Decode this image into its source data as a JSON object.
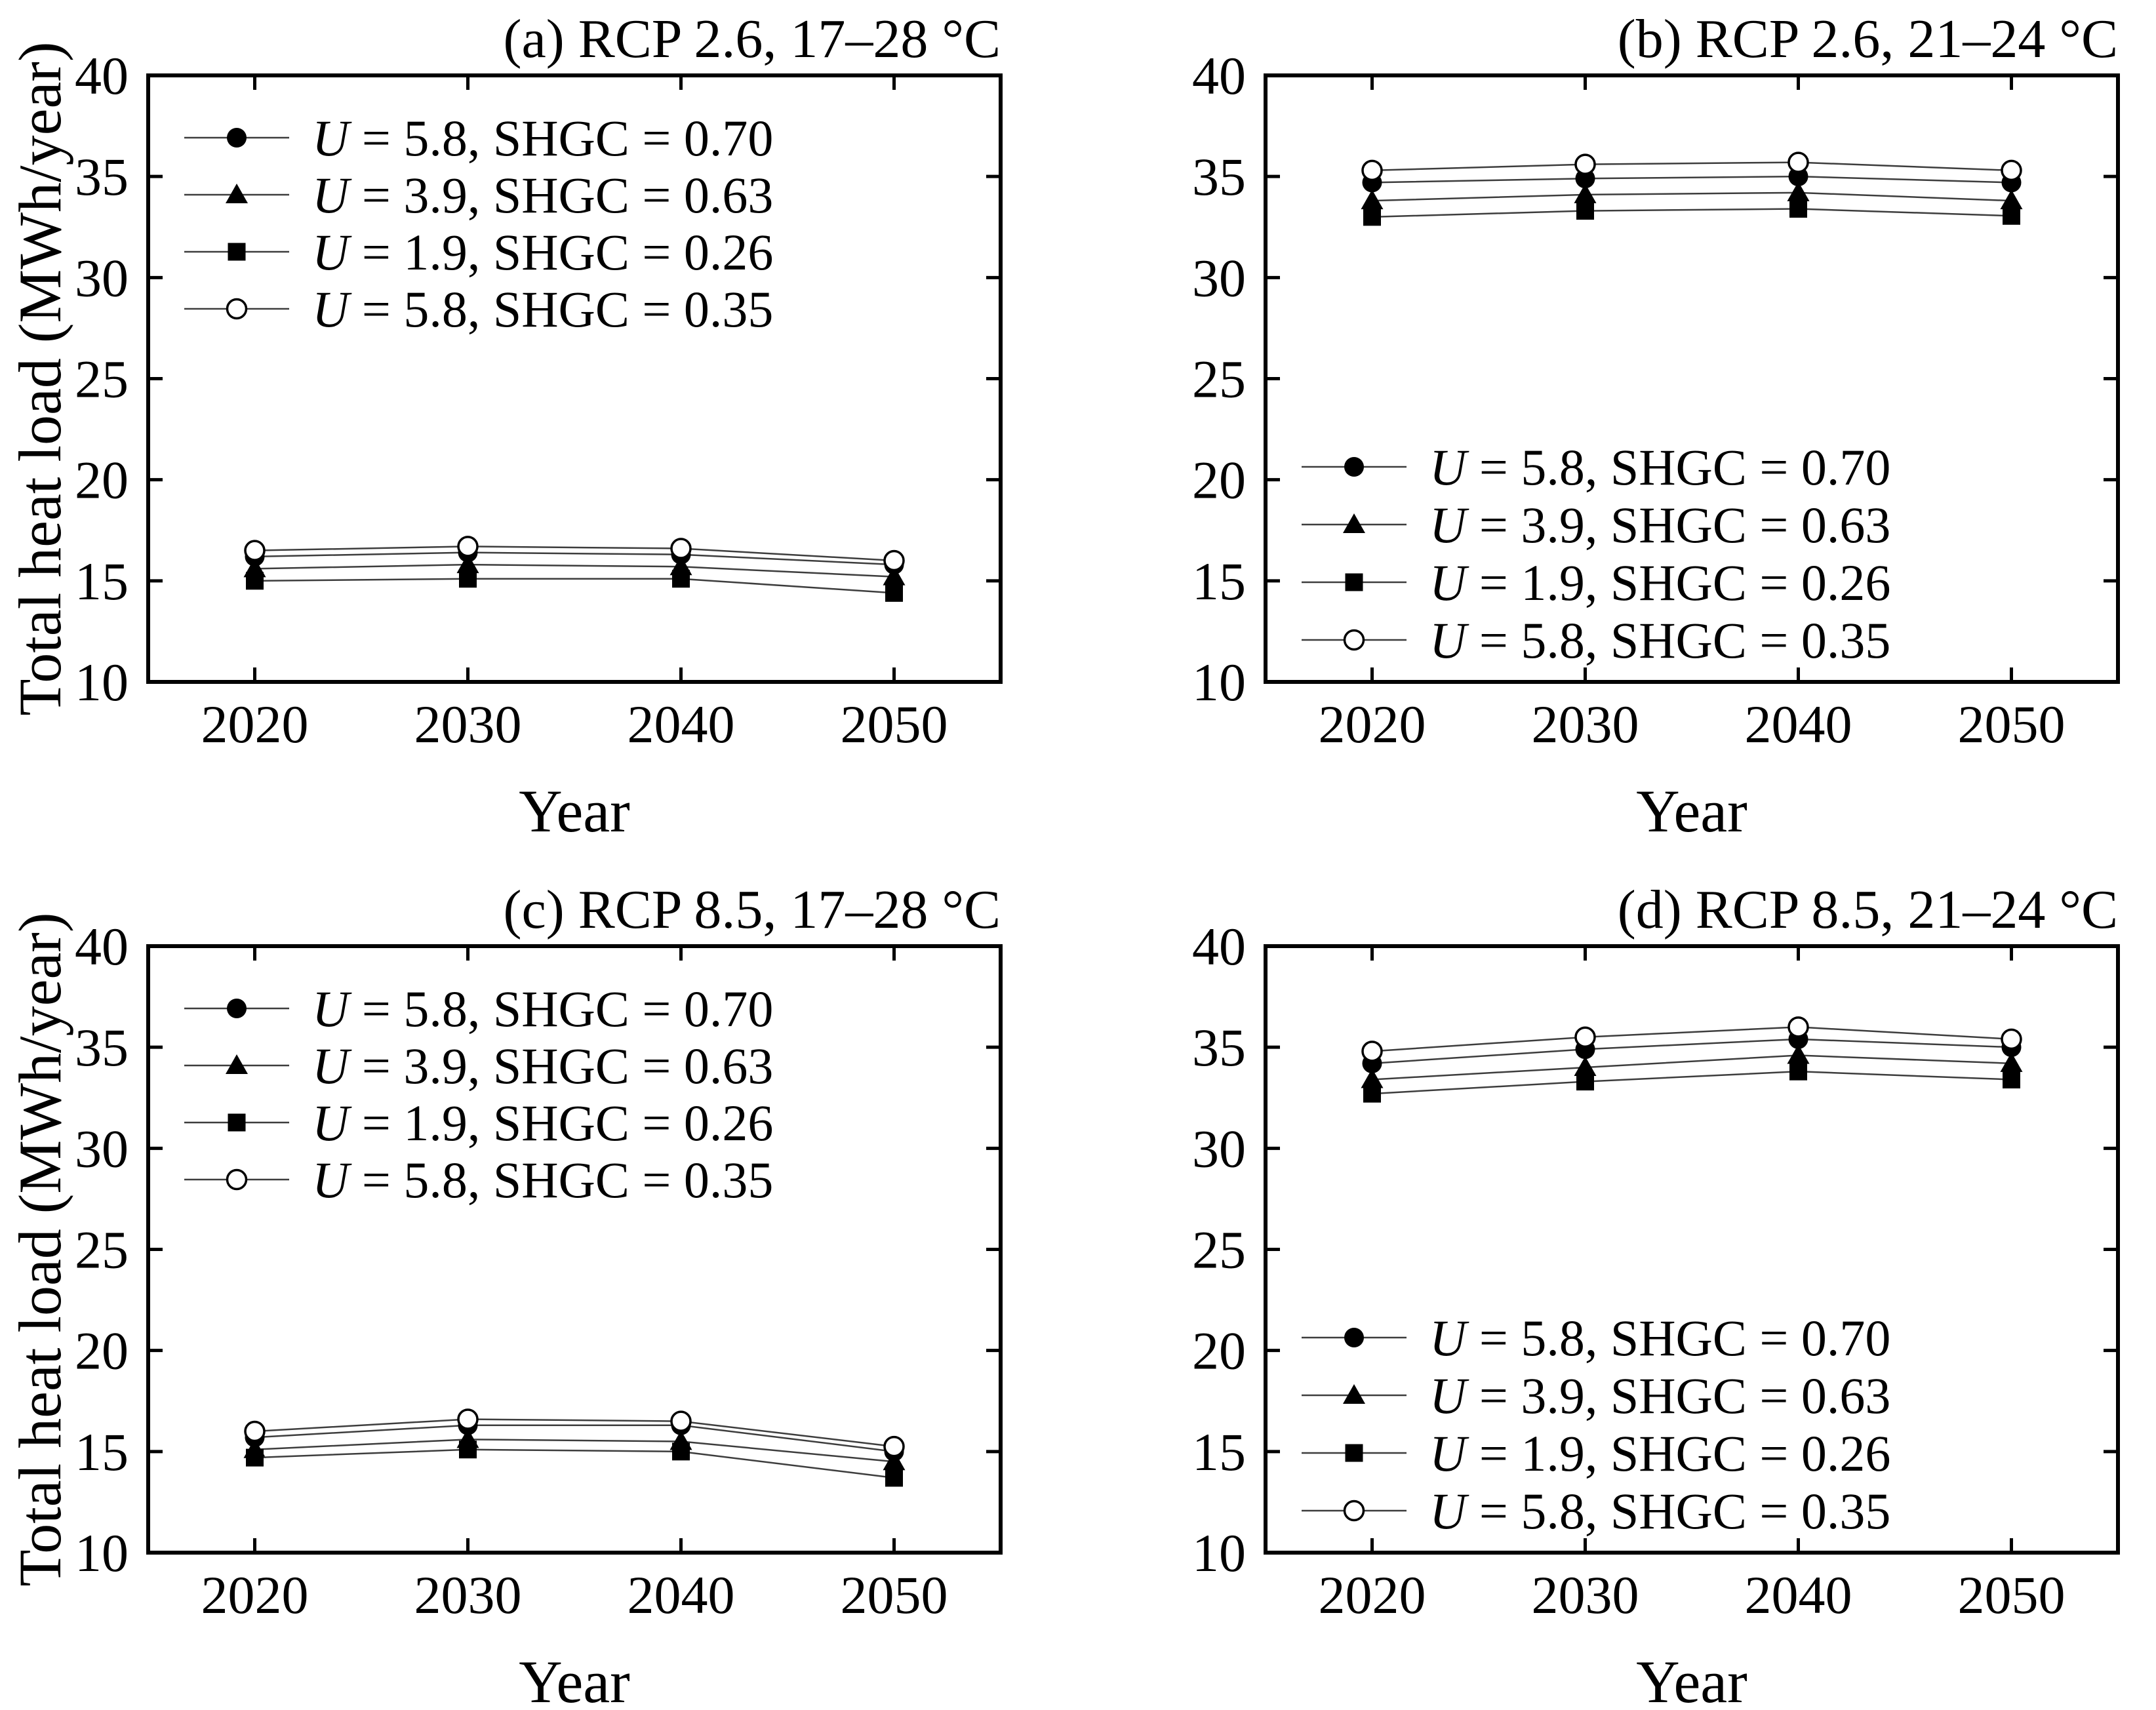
{
  "figure": {
    "background": "#ffffff",
    "ink_color": "#000000",
    "series_line_color": "#3d3d3d"
  },
  "axes": {
    "x": {
      "label": "Year",
      "range": [
        2015,
        2055
      ],
      "ticks": [
        2020,
        2030,
        2040,
        2050
      ],
      "tick_labels": [
        "2020",
        "2030",
        "2040",
        "2050"
      ]
    },
    "y": {
      "label": "Total heat load (MWh/year)",
      "range": [
        10,
        40
      ],
      "ticks": [
        10,
        15,
        20,
        25,
        30,
        35,
        40
      ],
      "tick_labels": [
        "10",
        "15",
        "20",
        "25",
        "30",
        "35",
        "40"
      ]
    }
  },
  "legend": {
    "entries": [
      {
        "marker": "filled-circle",
        "label_u": "U",
        "label_rest": " = 5.8, SHGC = 0.70",
        "full_label": "U = 5.8, SHGC = 0.70"
      },
      {
        "marker": "filled-triangle",
        "label_u": "U",
        "label_rest": " = 3.9, SHGC = 0.63",
        "full_label": "U = 3.9, SHGC = 0.63"
      },
      {
        "marker": "filled-square",
        "label_u": "U",
        "label_rest": " = 1.9, SHGC = 0.26",
        "full_label": "U = 1.9, SHGC = 0.26"
      },
      {
        "marker": "open-circle",
        "label_u": "U",
        "label_rest": " = 5.8, SHGC = 0.35",
        "full_label": "U = 5.8, SHGC = 0.35"
      }
    ]
  },
  "chart_data": [
    {
      "id": "a",
      "type": "line",
      "title": "(a) RCP 2.6, 17–28 °C",
      "xlabel": "Year",
      "ylabel": "Total heat load (MWh/year)",
      "x": [
        2020,
        2030,
        2040,
        2050
      ],
      "xlim": [
        2015,
        2055
      ],
      "ylim": [
        10,
        40
      ],
      "legend_position": "upper-left",
      "series": [
        {
          "name": "U = 5.8, SHGC = 0.70",
          "marker": "filled-circle",
          "values": [
            16.2,
            16.4,
            16.3,
            15.8
          ]
        },
        {
          "name": "U = 3.9, SHGC = 0.63",
          "marker": "filled-triangle",
          "values": [
            15.6,
            15.8,
            15.7,
            15.2
          ]
        },
        {
          "name": "U = 1.9, SHGC = 0.26",
          "marker": "filled-square",
          "values": [
            15.0,
            15.1,
            15.1,
            14.4
          ]
        },
        {
          "name": "U = 5.8, SHGC = 0.35",
          "marker": "open-circle",
          "values": [
            16.5,
            16.7,
            16.6,
            16.0
          ]
        }
      ]
    },
    {
      "id": "b",
      "type": "line",
      "title": "(b) RCP 2.6, 21–24 °C",
      "xlabel": "Year",
      "ylabel": "Total heat load (MWh/year)",
      "x": [
        2020,
        2030,
        2040,
        2050
      ],
      "xlim": [
        2015,
        2055
      ],
      "ylim": [
        10,
        40
      ],
      "legend_position": "lower-left",
      "series": [
        {
          "name": "U = 5.8, SHGC = 0.70",
          "marker": "filled-circle",
          "values": [
            34.7,
            34.9,
            35.0,
            34.7
          ]
        },
        {
          "name": "U = 3.9, SHGC = 0.63",
          "marker": "filled-triangle",
          "values": [
            33.8,
            34.1,
            34.2,
            33.8
          ]
        },
        {
          "name": "U = 1.9, SHGC = 0.26",
          "marker": "filled-square",
          "values": [
            33.0,
            33.3,
            33.4,
            33.05
          ]
        },
        {
          "name": "U = 5.8, SHGC = 0.35",
          "marker": "open-circle",
          "values": [
            35.3,
            35.6,
            35.7,
            35.3
          ]
        }
      ]
    },
    {
      "id": "c",
      "type": "line",
      "title": "(c) RCP 8.5, 17–28 °C",
      "xlabel": "Year",
      "ylabel": "Total heat load (MWh/year)",
      "x": [
        2020,
        2030,
        2040,
        2050
      ],
      "xlim": [
        2015,
        2055
      ],
      "ylim": [
        10,
        40
      ],
      "legend_position": "upper-left",
      "series": [
        {
          "name": "U = 5.8, SHGC = 0.70",
          "marker": "filled-circle",
          "values": [
            15.7,
            16.3,
            16.3,
            15.0
          ]
        },
        {
          "name": "U = 3.9, SHGC = 0.63",
          "marker": "filled-triangle",
          "values": [
            15.1,
            15.6,
            15.5,
            14.5
          ]
        },
        {
          "name": "U = 1.9, SHGC = 0.26",
          "marker": "filled-square",
          "values": [
            14.7,
            15.1,
            15.0,
            13.7
          ]
        },
        {
          "name": "U = 5.8, SHGC = 0.35",
          "marker": "open-circle",
          "values": [
            16.0,
            16.6,
            16.5,
            15.25
          ]
        }
      ]
    },
    {
      "id": "d",
      "type": "line",
      "title": "(d) RCP 8.5, 21–24 °C",
      "xlabel": "Year",
      "ylabel": "Total heat load (MWh/year)",
      "x": [
        2020,
        2030,
        2040,
        2050
      ],
      "xlim": [
        2015,
        2055
      ],
      "ylim": [
        10,
        40
      ],
      "legend_position": "lower-left",
      "series": [
        {
          "name": "U = 5.8, SHGC = 0.70",
          "marker": "filled-circle",
          "values": [
            34.2,
            34.9,
            35.4,
            35.0
          ]
        },
        {
          "name": "U = 3.9, SHGC = 0.63",
          "marker": "filled-triangle",
          "values": [
            33.4,
            34.0,
            34.6,
            34.2
          ]
        },
        {
          "name": "U = 1.9, SHGC = 0.26",
          "marker": "filled-square",
          "values": [
            32.7,
            33.3,
            33.8,
            33.4
          ]
        },
        {
          "name": "U = 5.8, SHGC = 0.35",
          "marker": "open-circle",
          "values": [
            34.8,
            35.5,
            36.0,
            35.4
          ]
        }
      ]
    }
  ]
}
